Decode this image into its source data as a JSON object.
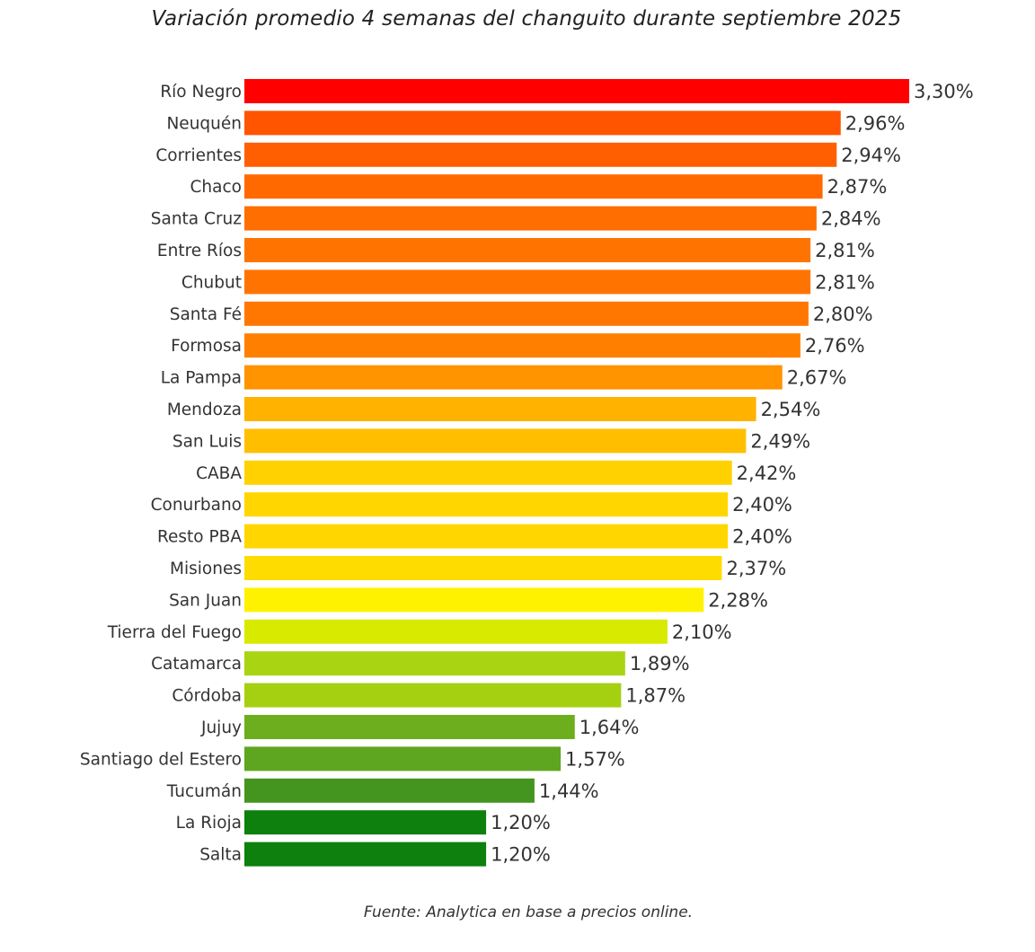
{
  "chart_data": {
    "type": "bar",
    "orientation": "horizontal",
    "title": "Variación promedio 4 semanas del changuito durante septiembre 2025",
    "source": "Fuente: Analytica en base a precios online.",
    "xlabel": "",
    "ylabel": "",
    "xlim": [
      0,
      3.3
    ],
    "grid": false,
    "legend": "none",
    "categories": [
      "Río Negro",
      "Neuquén",
      "Corrientes",
      "Chaco",
      "Santa Cruz",
      "Entre Ríos",
      "Chubut",
      "Santa Fé",
      "Formosa",
      "La Pampa",
      "Mendoza",
      "San Luis",
      "CABA",
      "Conurbano",
      "Resto PBA",
      "Misiones",
      "San Juan",
      "Tierra del Fuego",
      "Catamarca",
      "Córdoba",
      "Jujuy",
      "Santiago del Estero",
      "Tucumán",
      "La Rioja",
      "Salta"
    ],
    "values": [
      3.3,
      2.96,
      2.94,
      2.87,
      2.84,
      2.81,
      2.81,
      2.8,
      2.76,
      2.67,
      2.54,
      2.49,
      2.42,
      2.4,
      2.4,
      2.37,
      2.28,
      2.1,
      1.89,
      1.87,
      1.64,
      1.57,
      1.44,
      1.2,
      1.2
    ],
    "value_labels": [
      "3,30%",
      "2,96%",
      "2,94%",
      "2,87%",
      "2,84%",
      "2,81%",
      "2,81%",
      "2,80%",
      "2,76%",
      "2,67%",
      "2,54%",
      "2,49%",
      "2,42%",
      "2,40%",
      "2,40%",
      "2,37%",
      "2,28%",
      "2,10%",
      "1,89%",
      "1,87%",
      "1,64%",
      "1,57%",
      "1,44%",
      "1,20%",
      "1,20%"
    ],
    "colors": [
      "#ff0000",
      "#ff5400",
      "#ff5f00",
      "#ff6900",
      "#ff6e00",
      "#ff7400",
      "#ff7400",
      "#ff7700",
      "#ff8000",
      "#ff9300",
      "#ffb300",
      "#ffbf00",
      "#ffd100",
      "#ffd600",
      "#ffd600",
      "#ffdc00",
      "#fff200",
      "#d8ea00",
      "#a9d411",
      "#a5d012",
      "#6cae1d",
      "#5ea61f",
      "#44951f",
      "#0d800d",
      "#0d800d"
    ]
  }
}
